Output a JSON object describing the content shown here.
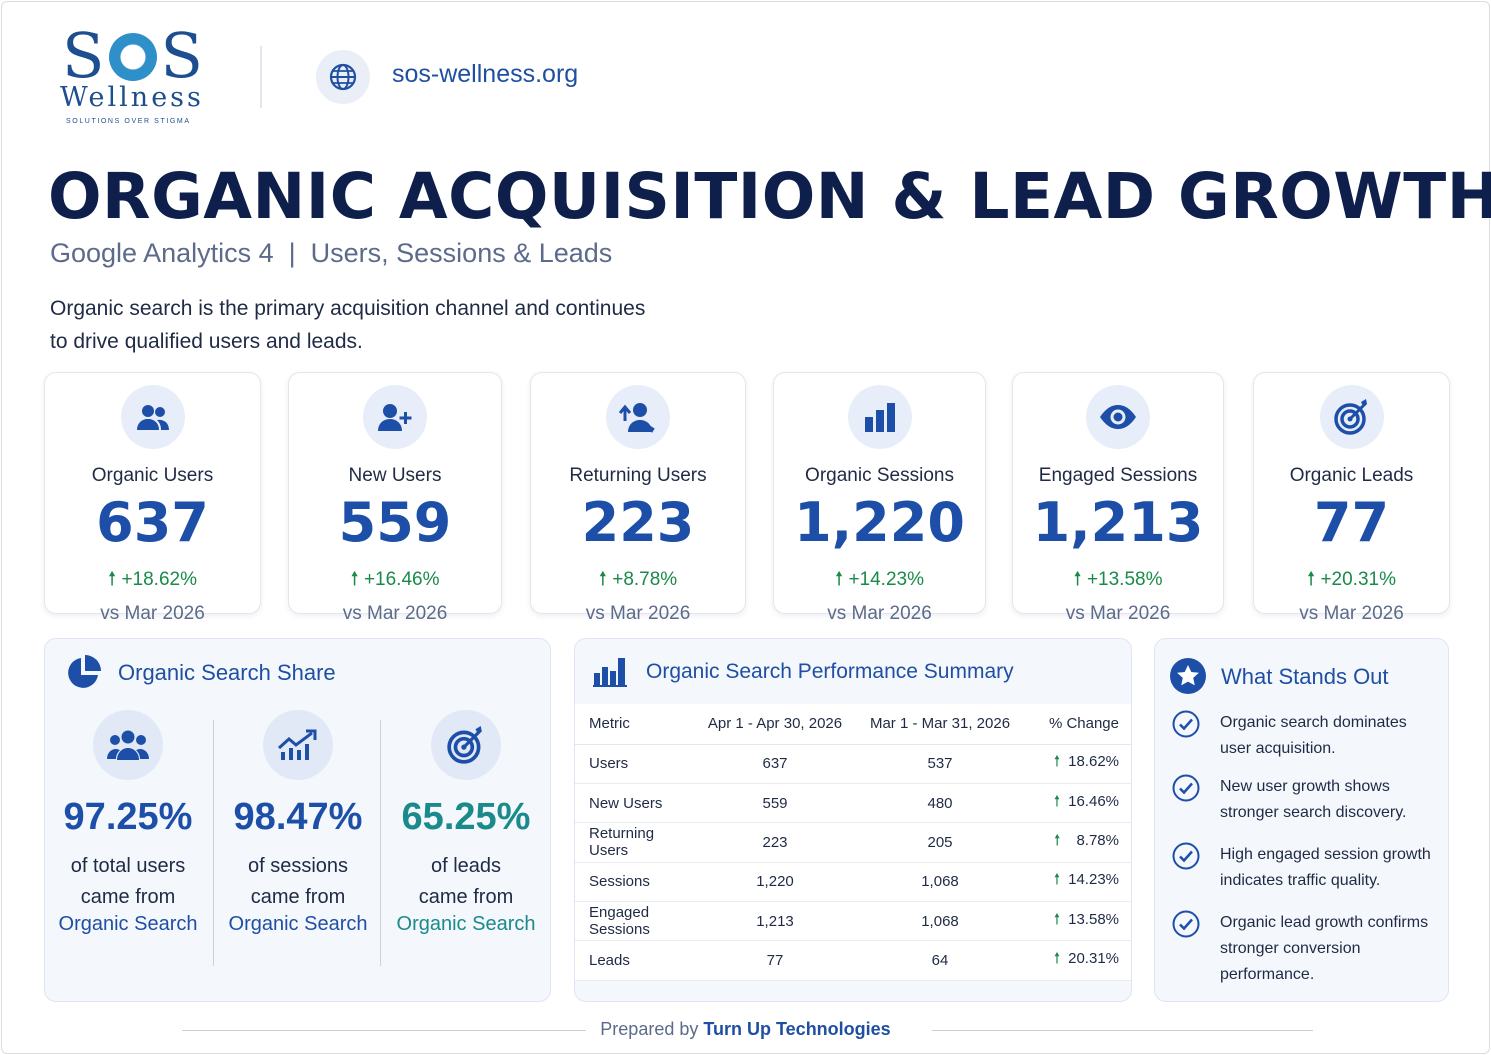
{
  "header": {
    "logo_text": "SOS",
    "logo_subtext": "Wellness",
    "logo_tagline": "SOLUTIONS OVER STIGMA",
    "url_icon": "globe-icon",
    "url": "sos-wellness.org"
  },
  "title": "ORGANIC ACQUISITION & LEAD GROWTH",
  "subtitle": "Google Analytics 4  |  Users, Sessions & Leads",
  "intro_line1": "Organic search is the primary acquisition channel and continues",
  "intro_line2": "to drive qualified users and leads.",
  "kpis": [
    {
      "icon": "users-icon",
      "label": "Organic Users",
      "value": "637",
      "change": "+18.62%",
      "compare": "vs Mar 2026"
    },
    {
      "icon": "user-plus-icon",
      "label": "New Users",
      "value": "559",
      "change": "+16.46%",
      "compare": "vs Mar 2026"
    },
    {
      "icon": "returning-user-icon",
      "label": "Returning Users",
      "value": "223",
      "change": "+8.78%",
      "compare": "vs Mar 2026"
    },
    {
      "icon": "bar-chart-icon",
      "label": "Organic Sessions",
      "value": "1,220",
      "change": "+14.23%",
      "compare": "vs Mar 2026"
    },
    {
      "icon": "eye-icon",
      "label": "Engaged Sessions",
      "value": "1,213",
      "change": "+13.58%",
      "compare": "vs Mar 2026"
    },
    {
      "icon": "target-icon",
      "label": "Organic Leads",
      "value": "77",
      "change": "+20.31%",
      "compare": "vs Mar 2026"
    }
  ],
  "share": {
    "title": "Organic Search Share",
    "items": [
      {
        "icon": "users-group-icon",
        "pct": "97.25%",
        "line1": "of total users",
        "line2": "came from",
        "source": "Organic Search",
        "color": "#1d4fa8"
      },
      {
        "icon": "trend-up-icon",
        "pct": "98.47%",
        "line1": "of sessions",
        "line2": "came from",
        "source": "Organic Search",
        "color": "#1d4fa8"
      },
      {
        "icon": "target-icon",
        "pct": "65.25%",
        "line1": "of leads",
        "line2": "came from",
        "source": "Organic Search",
        "color": "#1a8a8a"
      }
    ]
  },
  "summary": {
    "title": "Organic Search Performance Summary",
    "headers": [
      "Metric",
      "Apr 1 - Apr 30, 2026",
      "Mar 1 - Mar 31, 2026",
      "% Change"
    ],
    "rows": [
      [
        "Users",
        "637",
        "537",
        "18.62%"
      ],
      [
        "New Users",
        "559",
        "480",
        "16.46%"
      ],
      [
        "Returning Users",
        "223",
        "205",
        "8.78%"
      ],
      [
        "Sessions",
        "1,220",
        "1,068",
        "14.23%"
      ],
      [
        "Engaged Sessions",
        "1,213",
        "1,068",
        "13.58%"
      ],
      [
        "Leads",
        "77",
        "64",
        "20.31%"
      ]
    ]
  },
  "stands_out": {
    "title": "What Stands Out",
    "items": [
      {
        "l1": "Organic search dominates",
        "l2": "user acquisition.",
        "l3": ""
      },
      {
        "l1": "New user growth shows",
        "l2": "stronger search discovery.",
        "l3": ""
      },
      {
        "l1": "High engaged session growth",
        "l2": "indicates traffic quality.",
        "l3": ""
      },
      {
        "l1": "Organic lead growth confirms",
        "l2": "stronger conversion",
        "l3": "performance."
      }
    ]
  },
  "footer": {
    "prefix": "Prepared by ",
    "brand": "Turn Up Technologies"
  },
  "colors": {
    "primary": "#1d4fa8",
    "dark": "#0d1f4a",
    "positive": "#1a8a4a",
    "teal": "#1a8a8a"
  }
}
